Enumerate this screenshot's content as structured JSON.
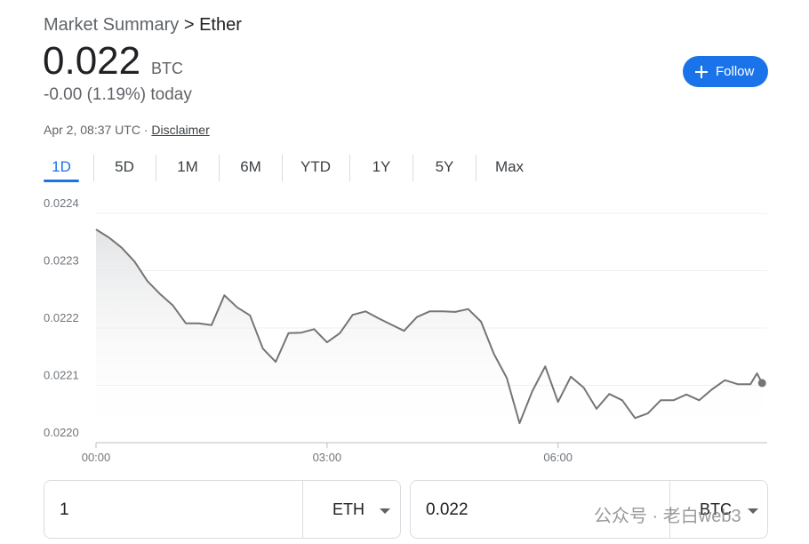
{
  "header": {
    "breadcrumb": [
      "Market Summary",
      ">",
      "Ether"
    ],
    "price": "0.022",
    "currency": "BTC",
    "change": "-0.00 (1.19%) today",
    "timestamp": "Apr 2, 08:37 UTC ·",
    "disclaimer": "Disclaimer",
    "follow": "Follow"
  },
  "tabs": [
    "1D",
    "5D",
    "1M",
    "6M",
    "YTD",
    "1Y",
    "5Y",
    "Max"
  ],
  "chart_data": {
    "type": "line",
    "color": "#757575",
    "x": [
      0,
      10,
      20,
      30,
      40,
      50,
      60,
      70,
      80,
      90,
      100,
      110,
      120,
      130,
      140,
      150,
      160,
      170,
      180,
      190,
      200,
      210,
      220,
      230,
      240,
      250,
      260,
      270,
      280,
      290,
      300,
      310,
      320,
      330,
      340,
      350,
      360,
      370,
      380,
      390,
      400,
      410,
      420,
      430,
      440,
      450,
      460,
      470,
      480,
      490,
      500,
      510,
      515,
      519
    ],
    "values": [
      0.022372,
      0.022358,
      0.02234,
      0.022316,
      0.022282,
      0.022259,
      0.022239,
      0.022208,
      0.022208,
      0.022205,
      0.022257,
      0.022236,
      0.022222,
      0.022164,
      0.022141,
      0.022191,
      0.022192,
      0.022198,
      0.022175,
      0.022191,
      0.022223,
      0.022229,
      0.022217,
      0.022206,
      0.022195,
      0.022219,
      0.022229,
      0.022229,
      0.022228,
      0.022233,
      0.022211,
      0.022155,
      0.022113,
      0.022034,
      0.02209,
      0.022133,
      0.022071,
      0.022115,
      0.022096,
      0.022059,
      0.022085,
      0.022074,
      0.022043,
      0.022051,
      0.022074,
      0.022074,
      0.022084,
      0.022074,
      0.022093,
      0.022109,
      0.022102,
      0.022102,
      0.022121,
      0.022104
    ],
    "xlim": [
      0,
      523
    ],
    "xticks": [
      {
        "value": 0,
        "label": "00:00"
      },
      {
        "value": 180,
        "label": "03:00"
      },
      {
        "value": 360,
        "label": "06:00"
      }
    ],
    "ylim": [
      0.022,
      0.0224
    ],
    "yticks": [
      {
        "value": 0.022,
        "label": "0.0220"
      },
      0.0221,
      0.0222,
      0.0223,
      0.0224
    ],
    "grid": true
  },
  "converter": {
    "from_amount": "1",
    "from_unit": "ETH",
    "to_amount": "0.022",
    "to_unit": "BTC"
  },
  "watermark": "公众号 · 老白web3"
}
